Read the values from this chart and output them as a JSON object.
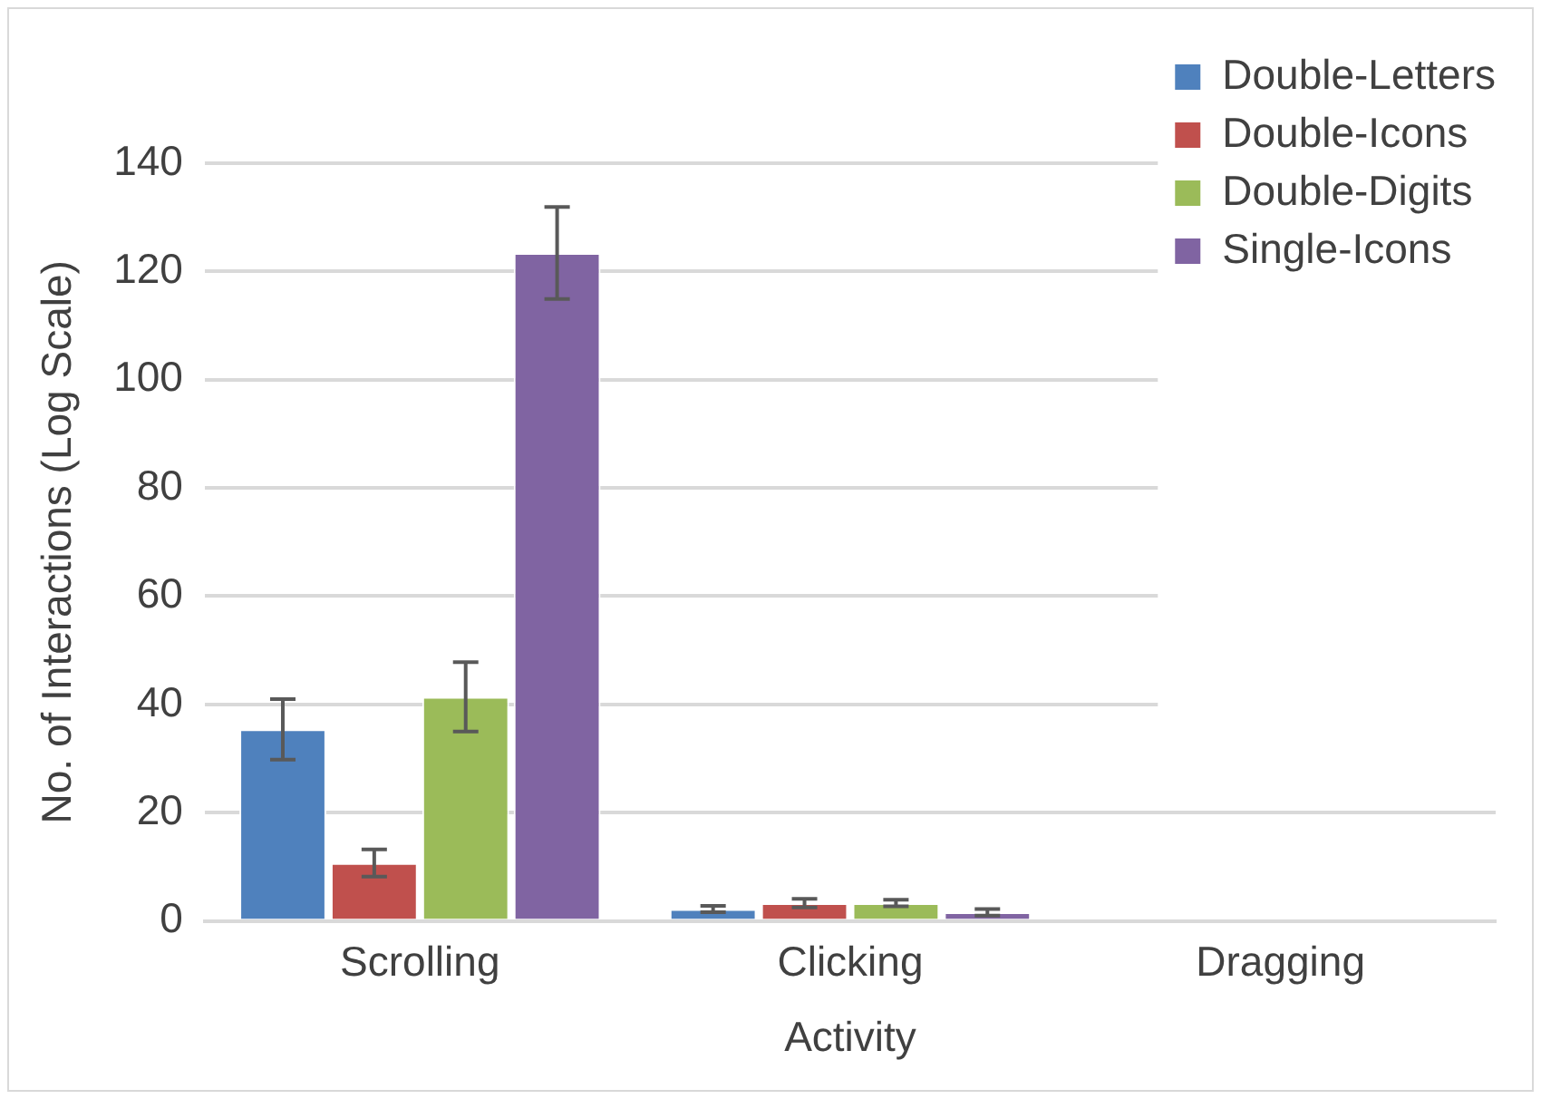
{
  "chart_data": {
    "type": "bar",
    "xlabel": "Activity",
    "ylabel": "No. of Interactions (Log Scale)",
    "categories": [
      "Scrolling",
      "Clicking",
      "Dragging"
    ],
    "series": [
      {
        "name": "Double-Letters",
        "color": "#4f81bd",
        "values": [
          35.4,
          2.2,
          0
        ],
        "errors": [
          5.6,
          0.6,
          null
        ]
      },
      {
        "name": "Double-Icons",
        "color": "#c0504d",
        "values": [
          10.7,
          3.3,
          0
        ],
        "errors": [
          2.5,
          0.8,
          null
        ]
      },
      {
        "name": "Double-Digits",
        "color": "#9bbb59",
        "values": [
          41.4,
          3.3,
          0
        ],
        "errors": [
          6.4,
          0.6,
          null
        ]
      },
      {
        "name": "Single-Icons",
        "color": "#8064a2",
        "values": [
          123.4,
          1.6,
          0
        ],
        "errors": [
          8.5,
          0.6,
          null
        ]
      }
    ],
    "ylim": [
      0,
      140
    ],
    "yticks": [
      0,
      20,
      40,
      60,
      80,
      100,
      120,
      140
    ],
    "grid": "y",
    "legend": "top right"
  }
}
